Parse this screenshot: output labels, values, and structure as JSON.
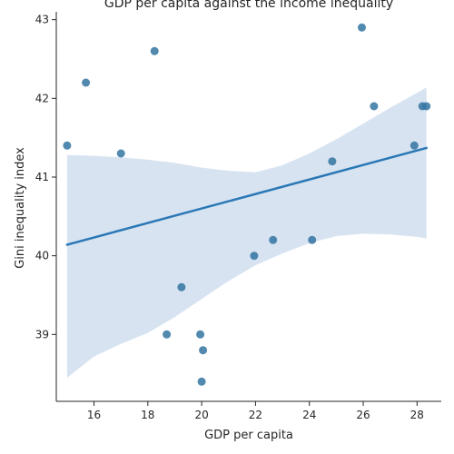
{
  "chart_data": {
    "type": "scatter",
    "title": "GDP per capita against the income inequality",
    "xlabel": "GDP per capita",
    "ylabel": "Gini inequality index",
    "xlim": [
      14.6,
      28.9
    ],
    "ylim": [
      38.15,
      43.1
    ],
    "x_ticks": [
      16,
      18,
      20,
      22,
      24,
      26,
      28
    ],
    "y_ticks": [
      39,
      40,
      41,
      42,
      43
    ],
    "grid": false,
    "points": [
      {
        "x": 15.0,
        "y": 41.4
      },
      {
        "x": 15.7,
        "y": 42.2
      },
      {
        "x": 17.0,
        "y": 41.3
      },
      {
        "x": 18.25,
        "y": 42.6
      },
      {
        "x": 18.7,
        "y": 39.0
      },
      {
        "x": 19.25,
        "y": 39.6
      },
      {
        "x": 19.95,
        "y": 39.0
      },
      {
        "x": 20.05,
        "y": 38.8
      },
      {
        "x": 20.0,
        "y": 38.4
      },
      {
        "x": 21.95,
        "y": 40.0
      },
      {
        "x": 22.65,
        "y": 40.2
      },
      {
        "x": 24.1,
        "y": 40.2
      },
      {
        "x": 24.85,
        "y": 41.2
      },
      {
        "x": 25.95,
        "y": 42.9
      },
      {
        "x": 26.4,
        "y": 41.9
      },
      {
        "x": 27.9,
        "y": 41.4
      },
      {
        "x": 28.2,
        "y": 41.9
      },
      {
        "x": 28.35,
        "y": 41.9
      }
    ],
    "regression": {
      "x": [
        15.0,
        28.35
      ],
      "y": [
        40.14,
        41.37
      ]
    },
    "confidence_band": [
      {
        "x": 15.0,
        "lower": 38.45,
        "upper": 41.28
      },
      {
        "x": 16.0,
        "lower": 38.72,
        "upper": 41.27
      },
      {
        "x": 17.0,
        "lower": 38.88,
        "upper": 41.25
      },
      {
        "x": 18.0,
        "lower": 39.02,
        "upper": 41.22
      },
      {
        "x": 19.0,
        "lower": 39.22,
        "upper": 41.18
      },
      {
        "x": 20.0,
        "lower": 39.45,
        "upper": 41.12
      },
      {
        "x": 21.0,
        "lower": 39.68,
        "upper": 41.08
      },
      {
        "x": 22.0,
        "lower": 39.88,
        "upper": 41.06
      },
      {
        "x": 23.0,
        "lower": 40.03,
        "upper": 41.15
      },
      {
        "x": 24.0,
        "lower": 40.16,
        "upper": 41.3
      },
      {
        "x": 25.0,
        "lower": 40.25,
        "upper": 41.48
      },
      {
        "x": 26.0,
        "lower": 40.28,
        "upper": 41.68
      },
      {
        "x": 27.0,
        "lower": 40.27,
        "upper": 41.88
      },
      {
        "x": 28.0,
        "lower": 40.24,
        "upper": 42.07
      },
      {
        "x": 28.35,
        "lower": 40.22,
        "upper": 42.14
      }
    ],
    "colors": {
      "points": "#3274a1",
      "line": "#2a78b6",
      "band": "#c9daec",
      "axis": "#262626"
    }
  }
}
